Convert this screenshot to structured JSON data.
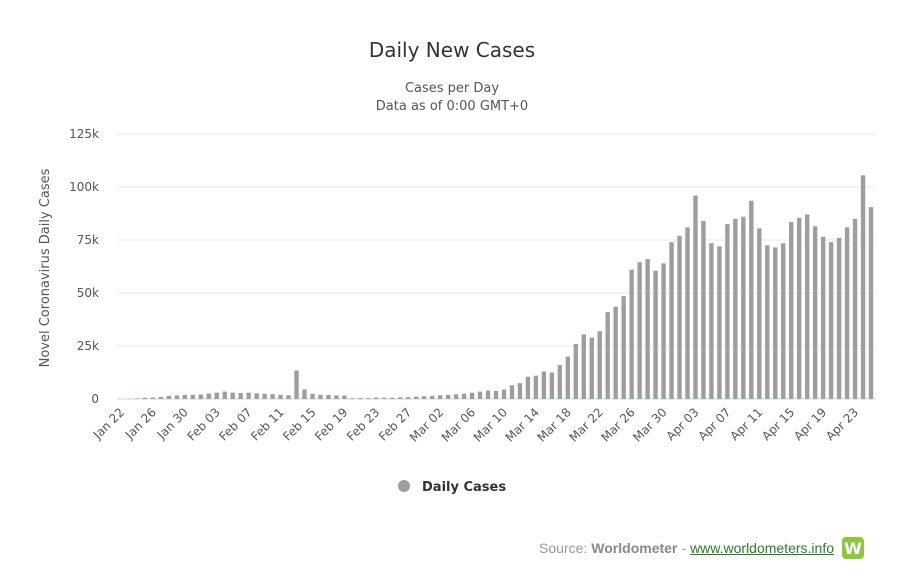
{
  "chart_data": {
    "type": "bar",
    "title": "Daily New Cases",
    "subtitle_lines": [
      "Cases per Day",
      "Data as of 0:00 GMT+0"
    ],
    "ylabel": "Novel Coronavirus Daily Cases",
    "xlabel": "",
    "ylim": [
      0,
      125000
    ],
    "y_ticks": [
      0,
      25000,
      50000,
      75000,
      100000,
      125000
    ],
    "y_tick_labels": [
      "0",
      "25k",
      "50k",
      "75k",
      "100k",
      "125k"
    ],
    "grid": true,
    "legend": "bottom-center",
    "x_tick_labels": [
      "Jan 22",
      "Jan 26",
      "Jan 30",
      "Feb 03",
      "Feb 07",
      "Feb 11",
      "Feb 15",
      "Feb 19",
      "Feb 23",
      "Feb 27",
      "Mar 02",
      "Mar 06",
      "Mar 10",
      "Mar 14",
      "Mar 18",
      "Mar 22",
      "Mar 26",
      "Mar 30",
      "Apr 03",
      "Apr 07",
      "Apr 11",
      "Apr 15",
      "Apr 19",
      "Apr 23"
    ],
    "categories": [
      "Jan 22",
      "Jan 23",
      "Jan 24",
      "Jan 25",
      "Jan 26",
      "Jan 27",
      "Jan 28",
      "Jan 29",
      "Jan 30",
      "Jan 31",
      "Feb 01",
      "Feb 02",
      "Feb 03",
      "Feb 04",
      "Feb 05",
      "Feb 06",
      "Feb 07",
      "Feb 08",
      "Feb 09",
      "Feb 10",
      "Feb 11",
      "Feb 12",
      "Feb 13",
      "Feb 14",
      "Feb 15",
      "Feb 16",
      "Feb 17",
      "Feb 18",
      "Feb 19",
      "Feb 20",
      "Feb 21",
      "Feb 22",
      "Feb 23",
      "Feb 24",
      "Feb 25",
      "Feb 26",
      "Feb 27",
      "Feb 28",
      "Feb 29",
      "Mar 01",
      "Mar 02",
      "Mar 03",
      "Mar 04",
      "Mar 05",
      "Mar 06",
      "Mar 07",
      "Mar 08",
      "Mar 09",
      "Mar 10",
      "Mar 11",
      "Mar 12",
      "Mar 13",
      "Mar 14",
      "Mar 15",
      "Mar 16",
      "Mar 17",
      "Mar 18",
      "Mar 19",
      "Mar 20",
      "Mar 21",
      "Mar 22",
      "Mar 23",
      "Mar 24",
      "Mar 25",
      "Mar 26",
      "Mar 27",
      "Mar 28",
      "Mar 29",
      "Mar 30",
      "Mar 31",
      "Apr 01",
      "Apr 02",
      "Apr 03",
      "Apr 04",
      "Apr 05",
      "Apr 06",
      "Apr 07",
      "Apr 08",
      "Apr 09",
      "Apr 10",
      "Apr 11",
      "Apr 12",
      "Apr 13",
      "Apr 14",
      "Apr 15",
      "Apr 16",
      "Apr 17",
      "Apr 18",
      "Apr 19",
      "Apr 20",
      "Apr 21",
      "Apr 22",
      "Apr 23",
      "Apr 24",
      "Apr 25"
    ],
    "series": [
      {
        "name": "Daily Cases",
        "color": "#9e9e9e",
        "values": [
          0,
          100,
          300,
          600,
          700,
          1000,
          1500,
          1700,
          2000,
          2000,
          2100,
          2600,
          3000,
          3500,
          3000,
          2800,
          3000,
          2700,
          2500,
          2300,
          2000,
          1800,
          13500,
          4500,
          2500,
          2000,
          1900,
          1700,
          1600,
          400,
          500,
          400,
          700,
          600,
          600,
          800,
          900,
          1100,
          1300,
          1500,
          1800,
          2000,
          2200,
          2500,
          3000,
          3500,
          4000,
          3800,
          4500,
          6500,
          7500,
          10500,
          11000,
          13000,
          12500,
          16000,
          20000,
          26000,
          30500,
          29000,
          32000,
          41000,
          43500,
          48500,
          61000,
          64500,
          66000,
          60500,
          64000,
          74000,
          77000,
          81000,
          96000,
          84000,
          73500,
          72000,
          82500,
          85000,
          86000,
          93500,
          80500,
          72500,
          71500,
          73500,
          83500,
          85500,
          87000,
          81500,
          76500,
          74000,
          76000,
          81000,
          85000,
          105500,
          90500
        ]
      }
    ]
  },
  "legend_label": "Daily Cases",
  "source": {
    "prefix": "Source:",
    "name": "Worldometer",
    "separator": "-",
    "link": "www.worldometers.info",
    "logo_letter": "W"
  }
}
